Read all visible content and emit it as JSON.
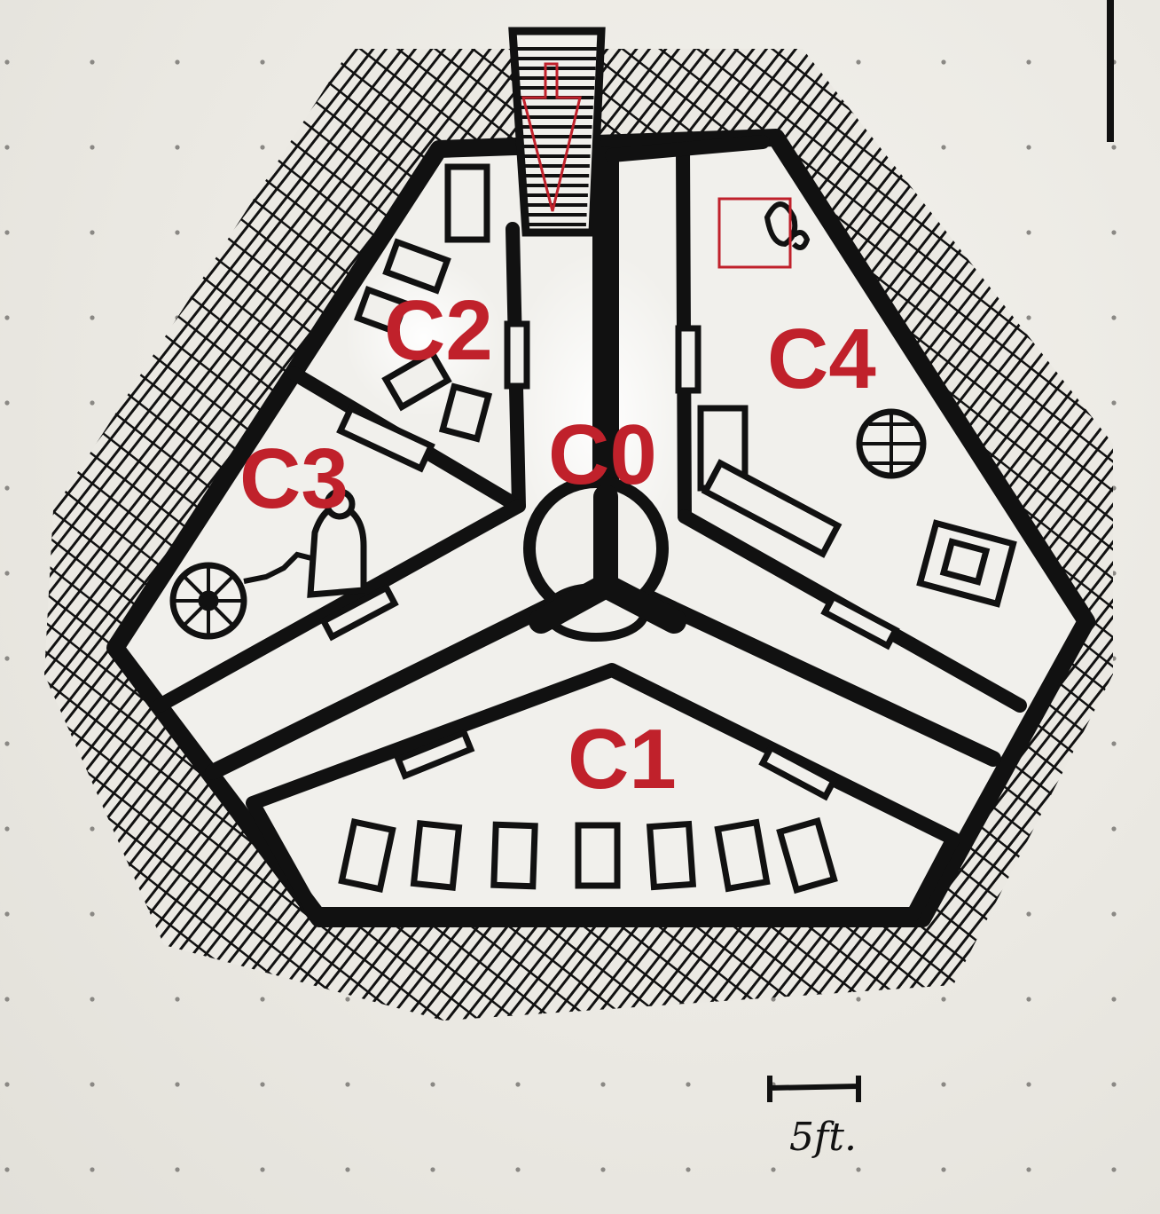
{
  "map": {
    "rooms": [
      {
        "id": "C0",
        "label": "C0"
      },
      {
        "id": "C1",
        "label": "C1"
      },
      {
        "id": "C2",
        "label": "C2"
      },
      {
        "id": "C3",
        "label": "C3"
      },
      {
        "id": "C4",
        "label": "C4"
      }
    ],
    "scale_bar": {
      "label": "5ft."
    },
    "colors": {
      "ink": "#111111",
      "paper": "#ebe9e3",
      "annotation_red": "#c0212b",
      "grid_dot": "#8a8884"
    },
    "markers": {
      "entrance_arrow": "entrance-arrow-icon",
      "highlight_box": "highlight-box"
    }
  }
}
